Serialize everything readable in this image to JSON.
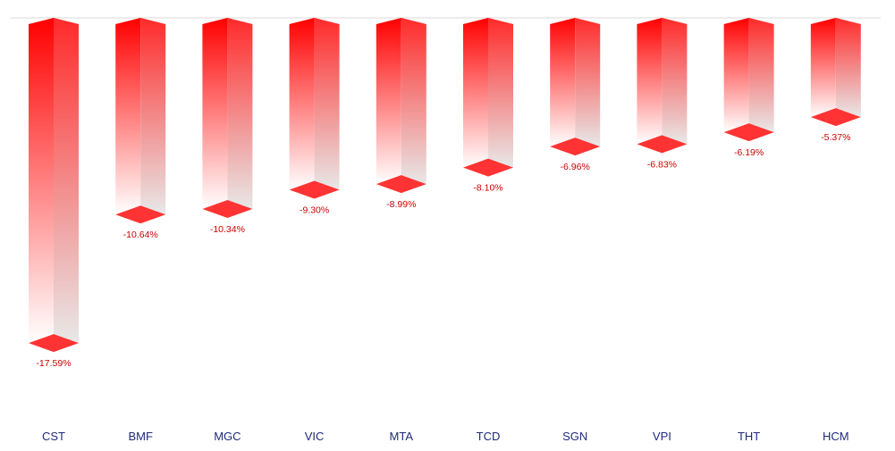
{
  "chart_data": {
    "type": "bar",
    "categories": [
      "CST",
      "BMF",
      "MGC",
      "VIC",
      "MTA",
      "TCD",
      "SGN",
      "VPI",
      "THT",
      "HCM"
    ],
    "values": [
      -17.59,
      -10.64,
      -10.34,
      -9.3,
      -8.99,
      -8.1,
      -6.96,
      -6.83,
      -6.19,
      -5.37
    ],
    "value_labels": [
      "-17.59%",
      "-10.64%",
      "-10.34%",
      "-9.30%",
      "-8.99%",
      "-8.10%",
      "-6.96%",
      "-6.83%",
      "-6.19%",
      "-5.37%"
    ],
    "ylim": [
      -17.59,
      0
    ],
    "grid": false,
    "legend": "none",
    "bar_style": "3d-box",
    "colors": {
      "bar_top": "#ff0000",
      "bar_fade": "#ffffff",
      "side_fade": "#e8e8e8",
      "cap": "#ff3333",
      "value_text": "#cc0000",
      "category_text": "#1f2a7a",
      "baseline": "#d9d9d9"
    }
  }
}
